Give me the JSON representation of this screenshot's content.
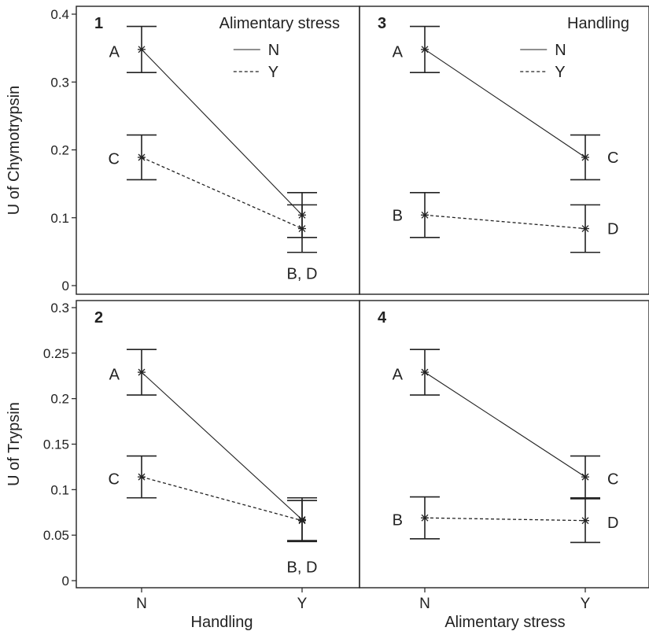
{
  "chart_data": [
    {
      "id": "1",
      "type": "line",
      "panel_label": "1",
      "title": "Alimentary stress",
      "xlabel": "",
      "ylabel": "U of Chymotrypsin",
      "categories": [
        "N",
        "Y"
      ],
      "ylim": [
        0,
        0.4
      ],
      "yticks": [
        0,
        0.1,
        0.2,
        0.3,
        0.4
      ],
      "ytick_labels": [
        "0",
        "0.1",
        "0.2",
        "0.3",
        "0.4"
      ],
      "show_xticklabels": false,
      "legend": {
        "position": "top-right",
        "entries": [
          {
            "name": "N",
            "style": "solid"
          },
          {
            "name": "Y",
            "style": "dashed"
          }
        ]
      },
      "series": [
        {
          "name": "N",
          "style": "solid",
          "values": [
            0.348,
            0.104
          ],
          "errors": [
            0.034,
            0.033
          ]
        },
        {
          "name": "Y",
          "style": "dashed",
          "values": [
            0.189,
            0.084
          ],
          "errors": [
            0.033,
            0.035
          ]
        }
      ],
      "annotations": [
        {
          "text": "A",
          "x": "N",
          "y": 0.345,
          "side": "left"
        },
        {
          "text": "C",
          "x": "N",
          "y": 0.187,
          "side": "left"
        },
        {
          "text": "B, D",
          "x": "Y",
          "y": 0.018,
          "side": "center"
        }
      ]
    },
    {
      "id": "3",
      "type": "line",
      "panel_label": "3",
      "title": "Handling",
      "xlabel": "",
      "ylabel": "",
      "categories": [
        "N",
        "Y"
      ],
      "ylim": [
        0,
        0.4
      ],
      "yticks": [
        0,
        0.1,
        0.2,
        0.3,
        0.4
      ],
      "ytick_labels": [],
      "show_xticklabels": false,
      "legend": {
        "position": "top-right",
        "entries": [
          {
            "name": "N",
            "style": "solid"
          },
          {
            "name": "Y",
            "style": "dashed"
          }
        ]
      },
      "series": [
        {
          "name": "N",
          "style": "solid",
          "values": [
            0.348,
            0.189
          ],
          "errors": [
            0.034,
            0.033
          ]
        },
        {
          "name": "Y",
          "style": "dashed",
          "values": [
            0.104,
            0.084
          ],
          "errors": [
            0.033,
            0.035
          ]
        }
      ],
      "annotations": [
        {
          "text": "A",
          "x": "N",
          "y": 0.345,
          "side": "left"
        },
        {
          "text": "B",
          "x": "N",
          "y": 0.104,
          "side": "left"
        },
        {
          "text": "C",
          "x": "Y",
          "y": 0.189,
          "side": "right"
        },
        {
          "text": "D",
          "x": "Y",
          "y": 0.084,
          "side": "right"
        }
      ]
    },
    {
      "id": "2",
      "type": "line",
      "panel_label": "2",
      "title": "",
      "xlabel": "Handling",
      "ylabel": "U of Trypsin",
      "categories": [
        "N",
        "Y"
      ],
      "ylim": [
        0,
        0.3
      ],
      "yticks": [
        0,
        0.05,
        0.1,
        0.15,
        0.2,
        0.25,
        0.3
      ],
      "ytick_labels": [
        "0",
        "0.05",
        "0.1",
        "0.15",
        "0.2",
        "0.25",
        "0.3"
      ],
      "show_xticklabels": true,
      "legend": null,
      "series": [
        {
          "name": "N",
          "style": "solid",
          "values": [
            0.229,
            0.067
          ],
          "errors": [
            0.025,
            0.024
          ]
        },
        {
          "name": "Y",
          "style": "dashed",
          "values": [
            0.114,
            0.066
          ],
          "errors": [
            0.023,
            0.022
          ]
        }
      ],
      "annotations": [
        {
          "text": "A",
          "x": "N",
          "y": 0.227,
          "side": "left"
        },
        {
          "text": "C",
          "x": "N",
          "y": 0.112,
          "side": "left"
        },
        {
          "text": "B, D",
          "x": "Y",
          "y": 0.015,
          "side": "center"
        }
      ]
    },
    {
      "id": "4",
      "type": "line",
      "panel_label": "4",
      "title": "",
      "xlabel": "Alimentary stress",
      "ylabel": "",
      "categories": [
        "N",
        "Y"
      ],
      "ylim": [
        0,
        0.3
      ],
      "yticks": [
        0,
        0.05,
        0.1,
        0.15,
        0.2,
        0.25,
        0.3
      ],
      "ytick_labels": [],
      "show_xticklabels": true,
      "legend": null,
      "series": [
        {
          "name": "N",
          "style": "solid",
          "values": [
            0.229,
            0.114
          ],
          "errors": [
            0.025,
            0.023
          ]
        },
        {
          "name": "Y",
          "style": "dashed",
          "values": [
            0.069,
            0.066
          ],
          "errors": [
            0.023,
            0.024
          ]
        }
      ],
      "annotations": [
        {
          "text": "A",
          "x": "N",
          "y": 0.227,
          "side": "left"
        },
        {
          "text": "B",
          "x": "N",
          "y": 0.067,
          "side": "left"
        },
        {
          "text": "C",
          "x": "Y",
          "y": 0.112,
          "side": "right"
        },
        {
          "text": "D",
          "x": "Y",
          "y": 0.064,
          "side": "right"
        }
      ]
    }
  ]
}
